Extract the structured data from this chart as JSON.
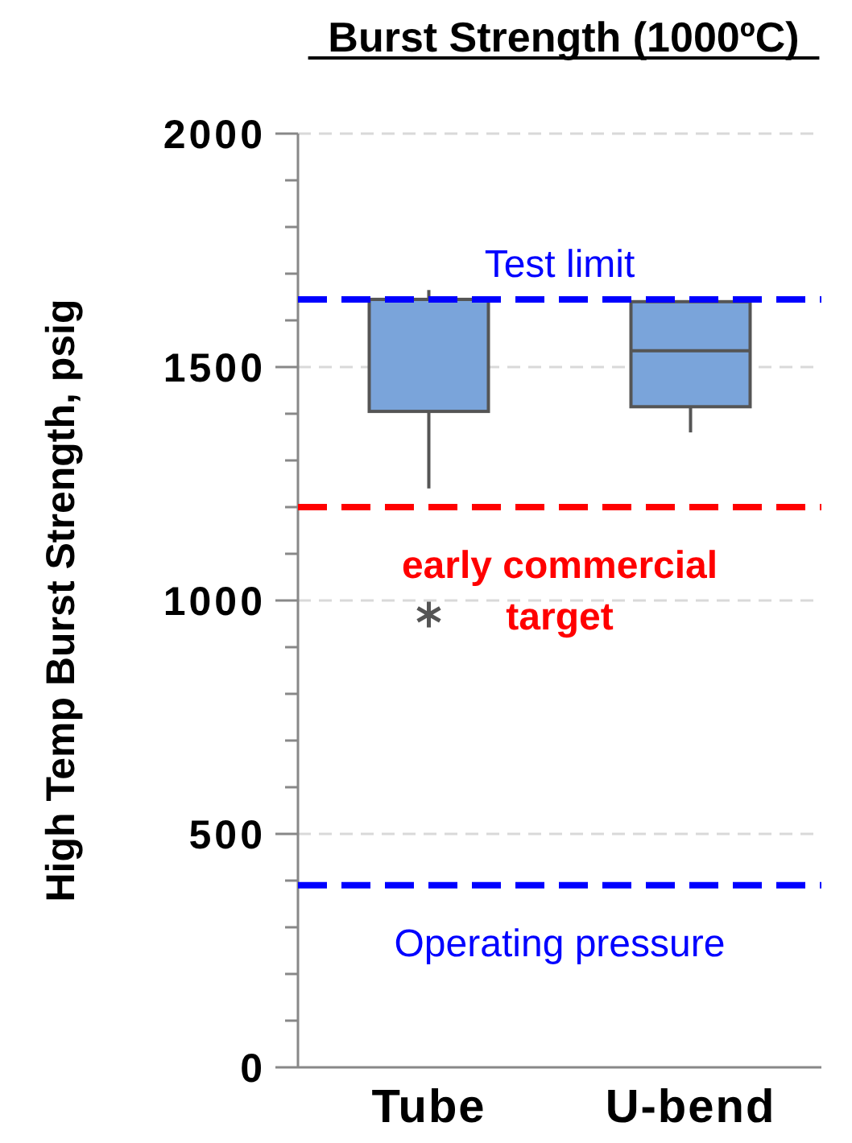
{
  "chart_data": {
    "type": "box",
    "title": "Burst Strength (1000ºC)",
    "ylabel": "High Temp Burst Strength, psig",
    "categories": [
      "Tube",
      "U-bend"
    ],
    "color": "#7aa4da",
    "boxes": [
      {
        "low": 1240,
        "q1": 1405,
        "median": 1645,
        "q3": 1645,
        "high": 1665,
        "outliers": [
          970
        ]
      },
      {
        "low": 1360,
        "q1": 1415,
        "median": 1535,
        "q3": 1640,
        "high": 1640
      }
    ],
    "ylim": [
      0,
      2000
    ],
    "yticks": [
      0,
      {
        "value": 100,
        "label": null
      },
      {
        "value": 200,
        "label": null
      },
      {
        "value": 300,
        "label": null
      },
      {
        "value": 400,
        "label": null
      },
      500,
      {
        "value": 600,
        "label": null
      },
      {
        "value": 700,
        "label": null
      },
      {
        "value": 800,
        "label": null
      },
      {
        "value": 900,
        "label": null
      },
      1000,
      {
        "value": 1100,
        "label": null
      },
      {
        "value": 1200,
        "label": null
      },
      {
        "value": 1300,
        "label": null
      },
      {
        "value": 1400,
        "label": null
      },
      1500,
      {
        "value": 1600,
        "label": null
      },
      {
        "value": 1700,
        "label": null
      },
      {
        "value": 1800,
        "label": null
      },
      {
        "value": 1900,
        "label": null
      },
      2000
    ],
    "grid": "y",
    "marker": "star",
    "ref_lines": [
      {
        "axis": "y",
        "value": 1645,
        "label": "Test limit",
        "color": "#0000ff",
        "line_style": "dashed"
      },
      {
        "axis": "y",
        "value": 1200,
        "label": "early commercial target",
        "color": "#ff0000",
        "line_style": "dashed"
      },
      {
        "axis": "y",
        "value": 390,
        "label": "Operating pressure",
        "color": "#0000ff",
        "line_style": "dashed"
      }
    ]
  }
}
